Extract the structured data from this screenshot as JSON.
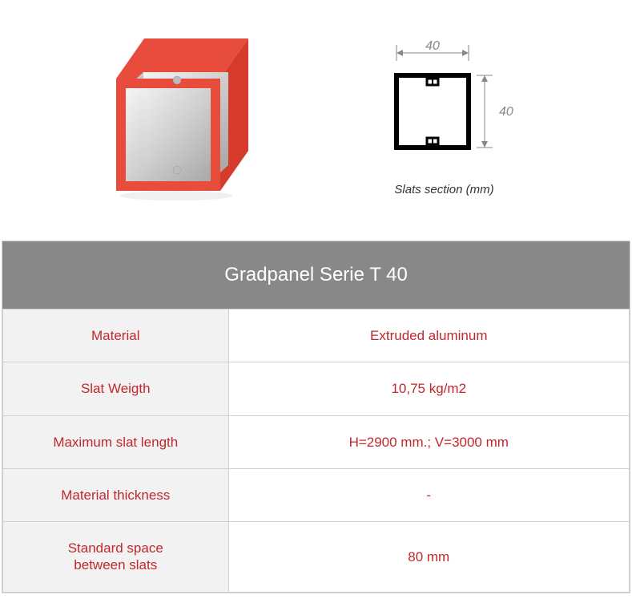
{
  "diagram": {
    "width_label": "40",
    "height_label": "40",
    "caption": "Slats section (mm)",
    "profile_stroke": "#000000",
    "dim_color": "#888888",
    "box3d": {
      "face_color": "#e74c3c",
      "face_color_dark": "#d63a2a",
      "inner_color_light": "#e8e8e8",
      "inner_color_dark": "#b8b8b8"
    }
  },
  "table": {
    "title": "Gradpanel Serie T 40",
    "rows": [
      {
        "label": "Material",
        "value": "Extruded aluminum"
      },
      {
        "label": "Slat Weigth",
        "value": "10,75 kg/m2"
      },
      {
        "label": "Maximum slat length",
        "value": "H=2900 mm.; V=3000 mm"
      },
      {
        "label": "Material thickness",
        "value": "-"
      },
      {
        "label": "Standard space\nbetween slats",
        "value": "80 mm"
      }
    ],
    "header_bg": "#888888",
    "header_fg": "#ffffff",
    "label_bg": "#f2f2f2",
    "value_bg": "#ffffff",
    "text_color": "#c1272d",
    "border_color": "#d0d0d0"
  }
}
